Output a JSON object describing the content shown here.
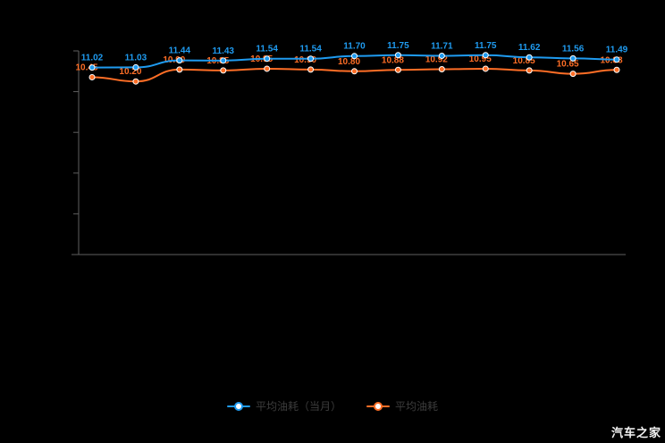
{
  "watermark": "汽车之家",
  "chart_data": {
    "type": "line",
    "title": "",
    "categories": [],
    "x_tick_labels_visible": false,
    "y_tick_labels_visible": false,
    "ylim": [
      0,
      12
    ],
    "y_tick_count": 6,
    "grid": false,
    "legend_position": "bottom",
    "series": [
      {
        "name": "平均油耗（当月）",
        "color": "#1f9bf0",
        "values": [
          11.02,
          11.03,
          11.44,
          11.43,
          11.54,
          11.54,
          11.7,
          11.75,
          11.71,
          11.75,
          11.62,
          11.56,
          11.49
        ]
      },
      {
        "name": "平均油耗",
        "color": "#ff6e26",
        "values": [
          10.45,
          10.2,
          10.9,
          10.85,
          10.95,
          10.9,
          10.8,
          10.88,
          10.92,
          10.95,
          10.85,
          10.65,
          10.88
        ]
      }
    ]
  }
}
